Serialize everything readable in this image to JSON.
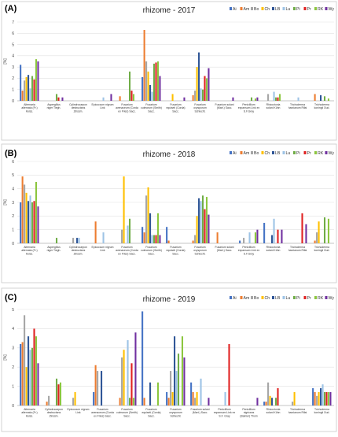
{
  "colors": {
    "Ai": "#4472c4",
    "Am": "#ed7d31",
    "Bo": "#a5a5a5",
    "Ch": "#ffc000",
    "LB": "#2f5597",
    "Lu": "#9dc3e6",
    "Pi": "#70ad47",
    "Pr": "#e02020",
    "RK": "#8cc63f",
    "Wy": "#7030a0"
  },
  "chart_data": [
    {
      "panel": "(A)",
      "type": "bar",
      "title": "rhizome - 2017",
      "ylabel": "[%]",
      "ylim": [
        0,
        7
      ],
      "yticks": [
        "0",
        "1",
        "2",
        "3",
        "4",
        "5",
        "6",
        "7"
      ],
      "categories": [
        "Alternaria alternata (Fr.) Keiss.",
        "Aspergillus niger Tiegh.",
        "Cylindrocarpon destructans Zinssm.",
        "Epicoccum nigrum Link",
        "Fusarium avenaceum (Corda ex Fries) Sacc.",
        "Fusarium culmorum (Smith) Sacc.",
        "Fusarium equiseti (Corda) Sacc.",
        "Fusarium oxysporum Schlecht.",
        "Fusarium solani (Mart.) Sacc.",
        "Penicillium expansum Link ex S.F.Gray",
        "Rhizoctonia solani Kühn",
        "Trichoderma harzianum Rifai",
        "Trichoderma koningii Oud."
      ],
      "series": [
        {
          "name": "Ai",
          "values": [
            3.2,
            0,
            0,
            0,
            0,
            2.1,
            0,
            0,
            0,
            0,
            0,
            0,
            0
          ]
        },
        {
          "name": "Am",
          "values": [
            0.9,
            0,
            0,
            0,
            0.4,
            6.3,
            0,
            0.5,
            0,
            0,
            0,
            0,
            0.6
          ]
        },
        {
          "name": "Bo",
          "values": [
            1.8,
            0,
            0,
            0,
            0,
            3.5,
            0,
            0.9,
            0,
            0,
            0.6,
            0,
            0
          ]
        },
        {
          "name": "Ch",
          "values": [
            2.1,
            0,
            0,
            0,
            0,
            2.6,
            0.6,
            3.0,
            0,
            0,
            0,
            0,
            0
          ]
        },
        {
          "name": "LB",
          "values": [
            2.3,
            0,
            0,
            0,
            0,
            1.4,
            0,
            4.3,
            0,
            0,
            0,
            0,
            0.5
          ]
        },
        {
          "name": "Lu",
          "values": [
            1.1,
            0,
            0,
            0.3,
            0,
            0.8,
            0,
            1.1,
            0,
            0,
            0.8,
            0.3,
            0
          ]
        },
        {
          "name": "Pi",
          "values": [
            2.2,
            0.6,
            0,
            0,
            2.6,
            3.3,
            0,
            1.0,
            0,
            0.3,
            0.3,
            0,
            0.4
          ]
        },
        {
          "name": "Pr",
          "values": [
            1.9,
            0.3,
            0,
            0,
            0.9,
            3.4,
            0,
            2.2,
            0,
            0,
            0.3,
            0,
            0
          ]
        },
        {
          "name": "RK",
          "values": [
            3.7,
            0,
            0,
            0,
            0.6,
            3.5,
            0,
            2.0,
            0,
            0.2,
            0.6,
            0,
            0.2
          ]
        },
        {
          "name": "Wy",
          "values": [
            3.5,
            0.3,
            0,
            0.6,
            0,
            2.2,
            0.3,
            2.9,
            0.3,
            0.3,
            0,
            0,
            0
          ]
        }
      ]
    },
    {
      "panel": "(B)",
      "type": "bar",
      "title": "rhizome - 2018",
      "ylabel": "[%]",
      "ylim": [
        0,
        6
      ],
      "yticks": [
        "0",
        "1",
        "2",
        "3",
        "4",
        "5",
        "6"
      ],
      "categories": [
        "Alternaria alternata (Fr.) Keiss.",
        "Aspergillus niger Tiegh.",
        "Cylindrocarpon destructans Zinssm.",
        "Epicoccum nigrum Link",
        "Fusarium avenaceum (Corda ex Fries) Sacc.",
        "Fusarium culmorum (Smith) Sacc.",
        "Fusarium equiseti (Corda) Sacc.",
        "Fusarium oxysporum Schlecht.",
        "Fusarium solani (Mart.) Sacc.",
        "Penicillium expansum Link ex S.F.Gray",
        "Rhizoctonia solani Kühn",
        "Trichoderma harzianum Rifai",
        "Trichoderma koningii Oud."
      ],
      "series": [
        {
          "name": "Ai",
          "values": [
            3.0,
            0,
            0,
            0,
            0,
            1.2,
            1.2,
            0,
            0,
            0.2,
            1.5,
            0,
            0
          ]
        },
        {
          "name": "Am",
          "values": [
            4.9,
            0,
            0,
            1.6,
            0,
            0.8,
            0.2,
            0.2,
            0.8,
            0,
            0,
            0,
            0.2
          ]
        },
        {
          "name": "Bo",
          "values": [
            4.3,
            0,
            0.4,
            0,
            1.0,
            3.5,
            0,
            0.6,
            0,
            0.4,
            0,
            0,
            0.8
          ]
        },
        {
          "name": "Ch",
          "values": [
            3.7,
            0,
            0,
            0,
            4.9,
            4.1,
            0,
            2.0,
            0,
            0,
            0,
            0,
            1.6
          ]
        },
        {
          "name": "LB",
          "values": [
            3.1,
            0,
            0.4,
            0,
            0,
            2.2,
            0,
            3.3,
            0,
            0,
            0.6,
            0,
            0
          ]
        },
        {
          "name": "Lu",
          "values": [
            3.5,
            0,
            0.4,
            0.8,
            1.3,
            0.6,
            0,
            3.1,
            0,
            0.8,
            1.8,
            0,
            0
          ]
        },
        {
          "name": "Pi",
          "values": [
            3.0,
            0.4,
            0,
            0,
            1.8,
            0.6,
            0,
            3.5,
            0,
            0,
            0,
            0,
            1.9
          ]
        },
        {
          "name": "Pr",
          "values": [
            3.1,
            0,
            0,
            0,
            0,
            0.6,
            0,
            2.5,
            0,
            0,
            1.0,
            2.2,
            0
          ]
        },
        {
          "name": "RK",
          "values": [
            4.5,
            0,
            0,
            0,
            0,
            2.2,
            0,
            3.4,
            0,
            0.8,
            0,
            0,
            1.8
          ]
        },
        {
          "name": "Wy",
          "values": [
            2.7,
            0,
            0,
            0,
            0,
            0.6,
            0,
            2.1,
            0,
            1.0,
            1.0,
            1.4,
            0
          ]
        }
      ]
    },
    {
      "panel": "(C)",
      "type": "bar",
      "title": "rhizome - 2019",
      "ylabel": "[%]",
      "ylim": [
        0,
        5
      ],
      "yticks": [
        "0",
        "1",
        "2",
        "3",
        "4",
        "5"
      ],
      "categories": [
        "Alternaria alternata (Fr.) Keiss.",
        "Cylindrocarpon destructans Zinssm.",
        "Epicoccum nigrum Link",
        "Fusarium avenaceum (Corda ex Fries) Sacc.",
        "Fusarium culmorum (Smith) Sacc.",
        "Fusarium equiseti (Corda) Sacc.",
        "Fusarium oxysporum Schlecht.",
        "Fusarium solani (Mart.) Sacc.",
        "Penicillium expansum Link ex S.F. Gray",
        "Penicillium nigricans (Bainier) Thom",
        "Rhizoctonia solani Kühn",
        "Trichoderma harzianum Rifai",
        "Trichoderma koningii Oud."
      ],
      "series": [
        {
          "name": "Ai",
          "values": [
            3.2,
            0,
            0,
            0.7,
            0,
            4.9,
            0.7,
            1.2,
            0,
            0,
            0.2,
            0,
            0.9
          ]
        },
        {
          "name": "Am",
          "values": [
            3.3,
            0.2,
            0,
            2.1,
            0.4,
            0.4,
            0.4,
            0.7,
            0,
            0,
            0.2,
            0,
            0.7
          ]
        },
        {
          "name": "Bo",
          "values": [
            4.7,
            0.5,
            0.4,
            1.8,
            2.5,
            0,
            1.8,
            0.4,
            0,
            0,
            1.2,
            0.2,
            0.5
          ]
        },
        {
          "name": "Ch",
          "values": [
            2.0,
            0,
            0.7,
            0,
            2.9,
            0,
            0.7,
            0.7,
            0,
            0,
            0.5,
            0.7,
            0.7
          ]
        },
        {
          "name": "LB",
          "values": [
            3.6,
            0,
            0,
            1.8,
            0,
            1.2,
            3.6,
            0,
            0,
            0,
            0.4,
            0,
            0.9
          ]
        },
        {
          "name": "Lu",
          "values": [
            2.9,
            0,
            0,
            0,
            3.4,
            0,
            1.8,
            1.4,
            0.7,
            0,
            0,
            0,
            1.1
          ]
        },
        {
          "name": "Pi",
          "values": [
            3.0,
            1.4,
            0,
            0,
            0.4,
            0,
            2.7,
            0,
            0,
            0,
            0.4,
            0,
            0.7
          ]
        },
        {
          "name": "Pr",
          "values": [
            4.0,
            1.1,
            0,
            0,
            2.2,
            0,
            0,
            0,
            3.2,
            0,
            0.9,
            0,
            0.7
          ]
        },
        {
          "name": "RK",
          "values": [
            3.6,
            1.2,
            0,
            0,
            0.4,
            1.2,
            3.6,
            0,
            0,
            0,
            0,
            0,
            0.7
          ]
        },
        {
          "name": "Wy",
          "values": [
            2.2,
            0,
            0,
            0,
            3.8,
            0,
            2.5,
            0.4,
            0,
            0.4,
            0,
            0,
            0.7
          ]
        }
      ]
    }
  ]
}
